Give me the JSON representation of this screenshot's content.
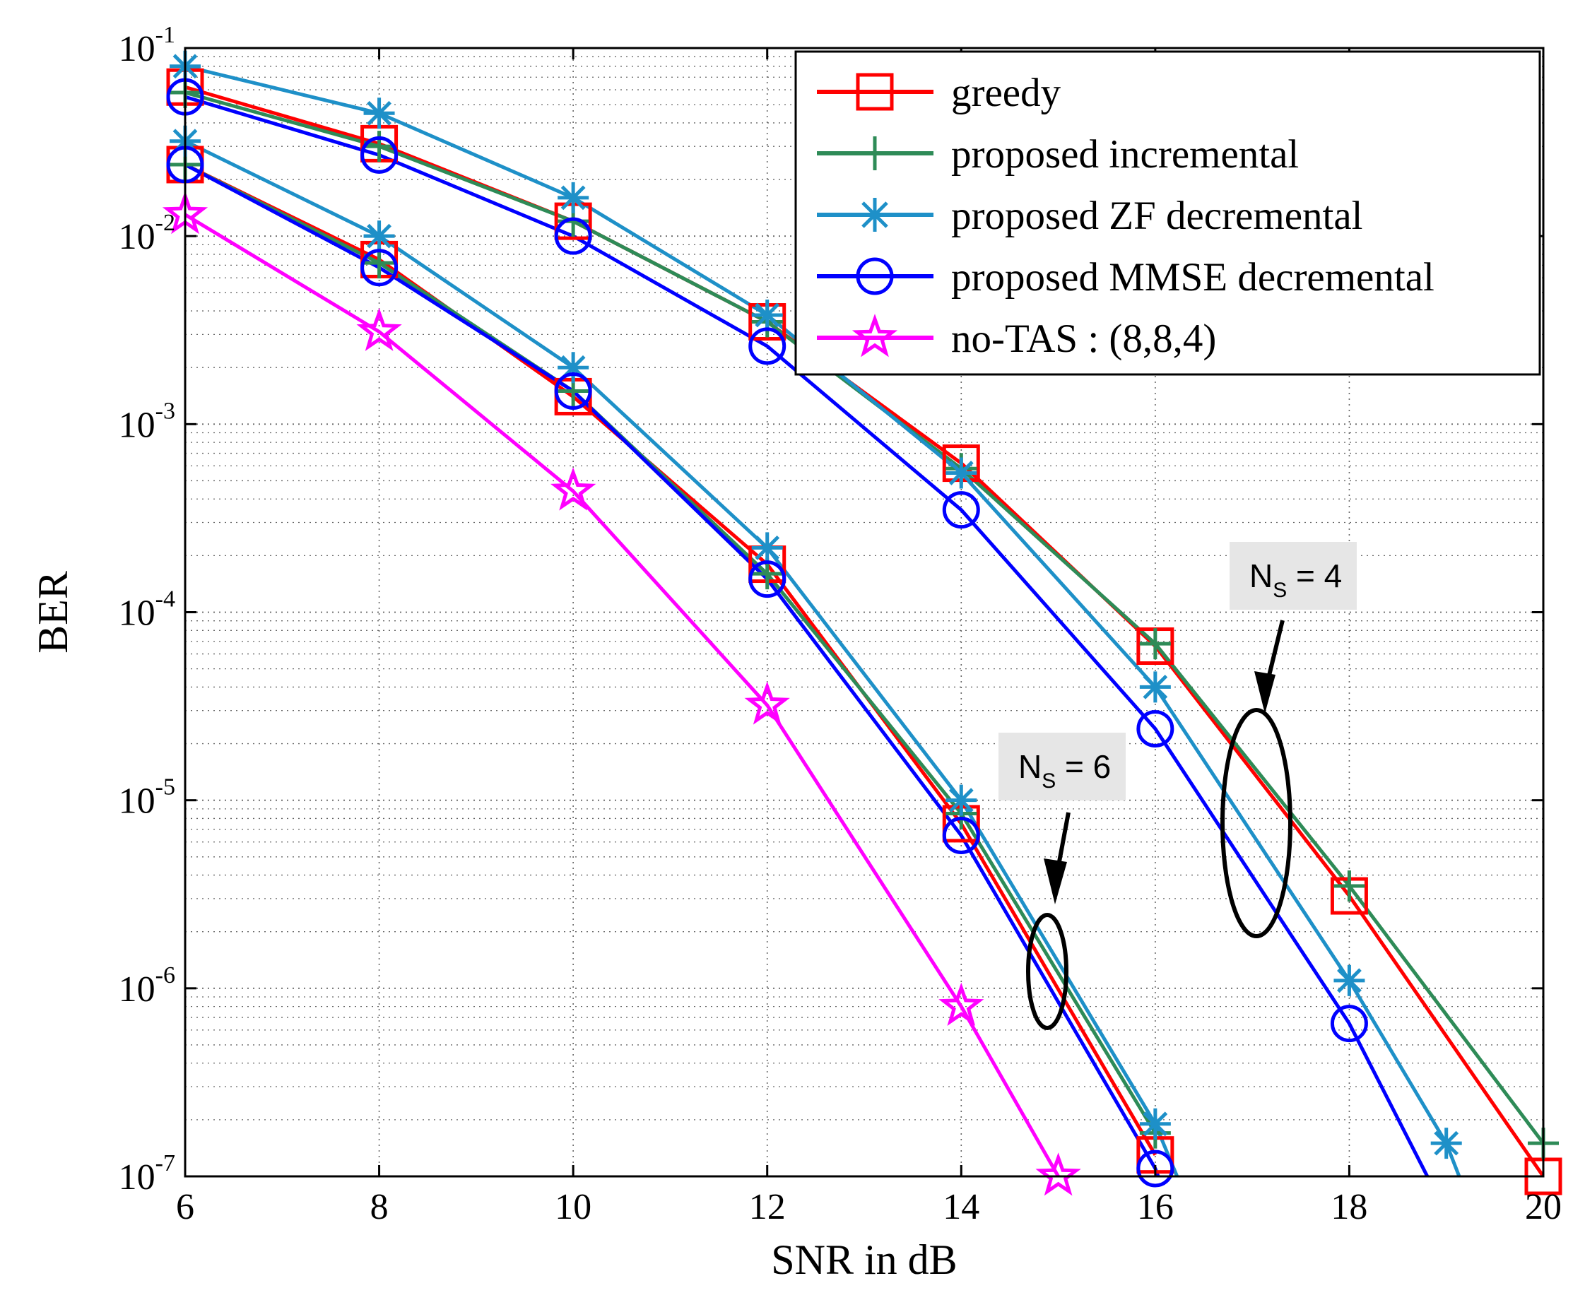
{
  "chart_data": {
    "type": "line",
    "xlabel": "SNR in dB",
    "ylabel": "BER",
    "xlim": [
      6,
      20
    ],
    "ylim": [
      1e-07,
      0.1
    ],
    "yscale": "log",
    "grid": true,
    "legend_position": "top-right",
    "xticks": [
      6,
      8,
      10,
      12,
      14,
      16,
      18,
      20
    ],
    "yticks": [
      {
        "base": "10",
        "exp": "-1",
        "value": 0.1
      },
      {
        "base": "10",
        "exp": "-2",
        "value": 0.01
      },
      {
        "base": "10",
        "exp": "-3",
        "value": 0.001
      },
      {
        "base": "10",
        "exp": "-4",
        "value": 0.0001
      },
      {
        "base": "10",
        "exp": "-5",
        "value": 1e-05
      },
      {
        "base": "10",
        "exp": "-6",
        "value": 1e-06
      },
      {
        "base": "10",
        "exp": "-7",
        "value": 1e-07
      }
    ],
    "series": [
      {
        "name": "greedy",
        "color": "#ff0000",
        "marker": "square",
        "group": "NS=4",
        "x": [
          6,
          8,
          10,
          12,
          14,
          16,
          18,
          20
        ],
        "y": [
          0.062,
          0.031,
          0.012,
          0.0035,
          0.00062,
          6.6e-05,
          3.1e-06,
          1e-07
        ]
      },
      {
        "name": "proposed incremental",
        "color": "#2e8b57",
        "marker": "plus",
        "group": "NS=4",
        "x": [
          6,
          8,
          10,
          12,
          14,
          16,
          18,
          20
        ],
        "y": [
          0.058,
          0.03,
          0.012,
          0.0035,
          0.00058,
          6.8e-05,
          3.5e-06,
          1.5e-07
        ]
      },
      {
        "name": "proposed ZF decremental",
        "color": "#1e90c8",
        "marker": "asterisk",
        "group": "NS=4",
        "x": [
          6,
          8,
          10,
          12,
          14,
          16,
          18,
          19,
          19.25
        ],
        "y": [
          0.08,
          0.045,
          0.016,
          0.0038,
          0.00055,
          4e-05,
          1.1e-06,
          1.5e-07,
          7e-08
        ]
      },
      {
        "name": "proposed MMSE decremental",
        "color": "#0000ff",
        "marker": "circle",
        "group": "NS=4",
        "x": [
          6,
          8,
          10,
          12,
          14,
          16,
          18,
          18.85
        ],
        "y": [
          0.055,
          0.027,
          0.01,
          0.0026,
          0.00035,
          2.4e-05,
          6.5e-07,
          9e-08
        ]
      },
      {
        "name": "greedy",
        "color": "#ff0000",
        "marker": "square",
        "group": "NS=6",
        "x": [
          6,
          8,
          10,
          12,
          14,
          16
        ],
        "y": [
          0.024,
          0.0075,
          0.0014,
          0.00018,
          7.5e-06,
          1.3e-07
        ]
      },
      {
        "name": "proposed incremental",
        "color": "#2e8b57",
        "marker": "plus",
        "group": "NS=6",
        "x": [
          6,
          8,
          10,
          12,
          14,
          16
        ],
        "y": [
          0.024,
          0.0072,
          0.0015,
          0.00016,
          8.5e-06,
          1.7e-07
        ]
      },
      {
        "name": "proposed ZF decremental",
        "color": "#1e90c8",
        "marker": "asterisk",
        "group": "NS=6",
        "x": [
          6,
          8,
          10,
          12,
          14,
          16,
          16.35
        ],
        "y": [
          0.032,
          0.01,
          0.002,
          0.00022,
          1e-05,
          1.9e-07,
          7e-08
        ]
      },
      {
        "name": "proposed MMSE decremental",
        "color": "#0000ff",
        "marker": "circle",
        "group": "NS=6",
        "x": [
          6,
          8,
          10,
          12,
          14,
          16,
          16.1
        ],
        "y": [
          0.024,
          0.0068,
          0.0015,
          0.00015,
          6.5e-06,
          1.1e-07,
          8e-08
        ]
      },
      {
        "name": "no-TAS : (8,8,4)",
        "color": "#ff00ff",
        "marker": "star",
        "group": "ref",
        "x": [
          6,
          8,
          10,
          12,
          14,
          15
        ],
        "y": [
          0.013,
          0.0031,
          0.00044,
          3.2e-05,
          8e-07,
          1e-07
        ]
      }
    ],
    "legend": [
      {
        "label": "greedy",
        "color": "#ff0000",
        "marker": "square"
      },
      {
        "label": "proposed incremental",
        "color": "#2e8b57",
        "marker": "plus"
      },
      {
        "label": "proposed ZF decremental",
        "color": "#1e90c8",
        "marker": "asterisk"
      },
      {
        "label": "proposed MMSE decremental",
        "color": "#0000ff",
        "marker": "circle"
      },
      {
        "label": "no-TAS : (8,8,4)",
        "color": "#ff00ff",
        "marker": "star"
      }
    ],
    "annotations": [
      {
        "id": "ns4",
        "main": "N",
        "sub": "S",
        "rest": " = 4"
      },
      {
        "id": "ns6",
        "main": "N",
        "sub": "S",
        "rest": " = 6"
      }
    ]
  }
}
